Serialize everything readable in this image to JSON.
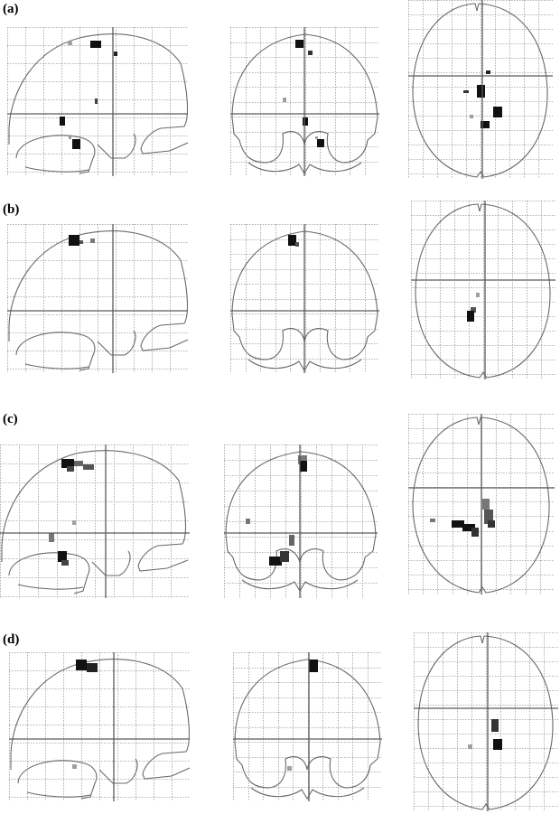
{
  "panels": [
    {
      "label": "(a)"
    },
    {
      "label": "(b)"
    },
    {
      "label": "(c)"
    },
    {
      "label": "(d)"
    }
  ],
  "colors": {
    "grid": "#9a9a9a",
    "outline": "#6a6a6a",
    "crosshair": "#5a5a5a",
    "blob_dark": "#111111",
    "blob_mid": "#555555",
    "blob_light": "#a0a0a0"
  }
}
